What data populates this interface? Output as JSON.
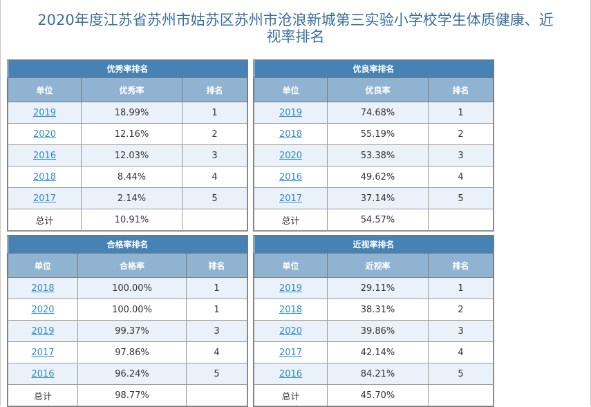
{
  "page_title_line1": "2020年度江苏省苏州市姑苏区苏州市沧浪新城第三实验小学校学生体质健康、近",
  "page_title_line2": "视率排名",
  "tables": {
    "excellent": {
      "caption": "优秀率排名",
      "headers": [
        "单位",
        "优秀率",
        "排名"
      ],
      "rows": [
        {
          "unit": "2019",
          "rate": "18.99%",
          "rank": "1"
        },
        {
          "unit": "2020",
          "rate": "12.16%",
          "rank": "2"
        },
        {
          "unit": "2016",
          "rate": "12.03%",
          "rank": "3"
        },
        {
          "unit": "2018",
          "rate": "8.44%",
          "rank": "4"
        },
        {
          "unit": "2017",
          "rate": "2.14%",
          "rank": "5"
        }
      ],
      "total": {
        "label": "总计",
        "rate": "10.91%",
        "rank": ""
      }
    },
    "good": {
      "caption": "优良率排名",
      "headers": [
        "单位",
        "优良率",
        "排名"
      ],
      "rows": [
        {
          "unit": "2019",
          "rate": "74.68%",
          "rank": "1"
        },
        {
          "unit": "2018",
          "rate": "55.19%",
          "rank": "2"
        },
        {
          "unit": "2020",
          "rate": "53.38%",
          "rank": "3"
        },
        {
          "unit": "2016",
          "rate": "49.62%",
          "rank": "4"
        },
        {
          "unit": "2017",
          "rate": "37.14%",
          "rank": "5"
        }
      ],
      "total": {
        "label": "总计",
        "rate": "54.57%",
        "rank": ""
      }
    },
    "pass": {
      "caption": "合格率排名",
      "headers": [
        "单位",
        "合格率",
        "排名"
      ],
      "rows": [
        {
          "unit": "2018",
          "rate": "100.00%",
          "rank": "1"
        },
        {
          "unit": "2020",
          "rate": "100.00%",
          "rank": "1"
        },
        {
          "unit": "2019",
          "rate": "99.37%",
          "rank": "3"
        },
        {
          "unit": "2017",
          "rate": "97.86%",
          "rank": "4"
        },
        {
          "unit": "2016",
          "rate": "96.24%",
          "rank": "5"
        }
      ],
      "total": {
        "label": "总计",
        "rate": "98.77%",
        "rank": ""
      }
    },
    "myopia": {
      "caption": "近视率排名",
      "headers": [
        "单位",
        "近视率",
        "排名"
      ],
      "rows": [
        {
          "unit": "2019",
          "rate": "29.11%",
          "rank": "1"
        },
        {
          "unit": "2018",
          "rate": "38.31%",
          "rank": "2"
        },
        {
          "unit": "2020",
          "rate": "39.86%",
          "rank": "3"
        },
        {
          "unit": "2017",
          "rate": "42.14%",
          "rank": "4"
        },
        {
          "unit": "2016",
          "rate": "84.21%",
          "rank": "5"
        }
      ],
      "total": {
        "label": "总计",
        "rate": "45.70%",
        "rank": ""
      }
    }
  }
}
